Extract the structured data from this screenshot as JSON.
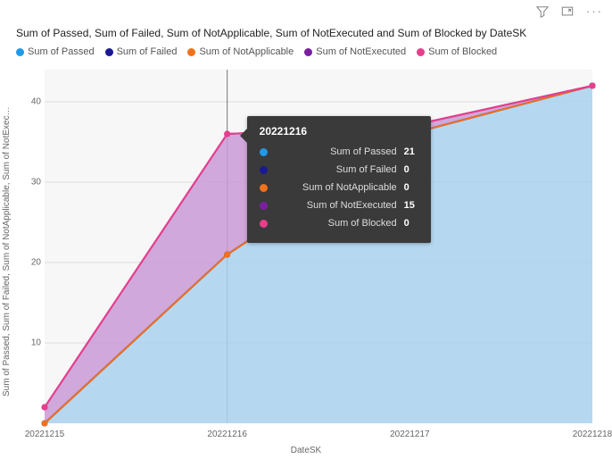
{
  "title": "Sum of Passed, Sum of Failed, Sum of NotApplicable, Sum of NotExecuted and Sum of Blocked by DateSK",
  "xlabel": "DateSK",
  "ylabel": "Sum of Passed, Sum of Failed, Sum of NotApplicable, Sum of NotExec…",
  "chart": {
    "type": "area-stacked",
    "background_color": "#f7f7f7",
    "gridline_color": "#dddddd",
    "xlim": [
      0,
      3
    ],
    "ylim": [
      0,
      44
    ],
    "yticks": [
      10,
      20,
      30,
      40
    ],
    "xticks": [
      "20221215",
      "20221216",
      "20221217",
      "20221218"
    ],
    "categories": [
      "20221215",
      "20221216",
      "20221217",
      "20221218"
    ],
    "series": [
      {
        "name": "Sum of Passed",
        "color": "#2099e6",
        "fill": "#a9d2ef",
        "values": [
          0,
          21,
          36,
          42
        ]
      },
      {
        "name": "Sum of Failed",
        "color": "#1a1894",
        "fill": "#1a1894",
        "values": [
          0,
          0,
          0,
          0
        ]
      },
      {
        "name": "Sum of NotApplicable",
        "color": "#f2711c",
        "fill": "#f2711c",
        "values": [
          0,
          0,
          0,
          0
        ]
      },
      {
        "name": "Sum of NotExecuted",
        "color": "#7b1fa2",
        "fill": "#c99ad6",
        "values": [
          2,
          15,
          1,
          0
        ]
      },
      {
        "name": "Sum of Blocked",
        "color": "#e83e8c",
        "fill": "#e83e8c",
        "values": [
          0,
          0,
          0,
          0
        ]
      }
    ],
    "marker_radius": 3.5,
    "line_width": 2
  },
  "tooltip": {
    "x_index": 1,
    "title": "20221216",
    "rows": [
      {
        "label": "Sum of Passed",
        "value": "21",
        "color": "#2099e6"
      },
      {
        "label": "Sum of Failed",
        "value": "0",
        "color": "#1a1894"
      },
      {
        "label": "Sum of NotApplicable",
        "value": "0",
        "color": "#f2711c"
      },
      {
        "label": "Sum of NotExecuted",
        "value": "15",
        "color": "#7b1fa2"
      },
      {
        "label": "Sum of Blocked",
        "value": "0",
        "color": "#e83e8c"
      }
    ]
  },
  "legend": [
    {
      "label": "Sum of Passed",
      "color": "#2099e6"
    },
    {
      "label": "Sum of Failed",
      "color": "#1a1894"
    },
    {
      "label": "Sum of NotApplicable",
      "color": "#f2711c"
    },
    {
      "label": "Sum of NotExecuted",
      "color": "#7b1fa2"
    },
    {
      "label": "Sum of Blocked",
      "color": "#e83e8c"
    }
  ],
  "toolbar": {
    "filter": "Filter",
    "focus": "Focus mode",
    "more": "More options"
  }
}
